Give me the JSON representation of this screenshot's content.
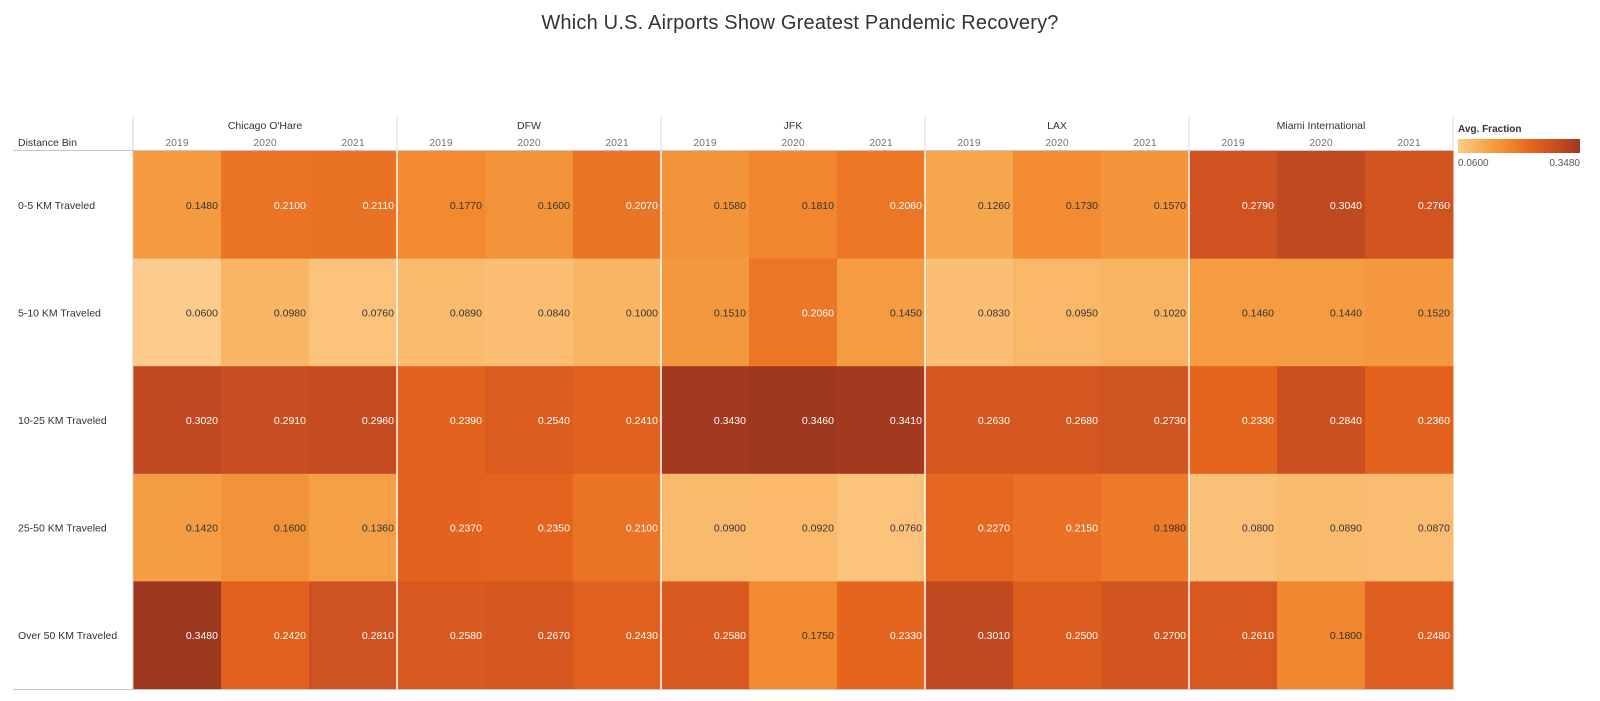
{
  "title": "Which U.S. Airports Show Greatest Pandemic Recovery?",
  "chart_data": {
    "type": "heatmap",
    "title": "Which U.S. Airports Show Greatest Pandemic Recovery?",
    "row_header": "Distance Bin",
    "column_groups": [
      "Chicago O'Hare",
      "DFW",
      "JFK",
      "LAX",
      "Miami International"
    ],
    "years": [
      "2019",
      "2020",
      "2021"
    ],
    "rows": [
      "0-5 KM Traveled",
      "5-10 KM Traveled",
      "10-25 KM Traveled",
      "25-50 KM Traveled",
      "Over 50 KM Traveled"
    ],
    "values": [
      [
        0.148,
        0.21,
        0.211,
        0.177,
        0.16,
        0.207,
        0.158,
        0.181,
        0.206,
        0.126,
        0.173,
        0.157,
        0.279,
        0.304,
        0.276
      ],
      [
        0.06,
        0.098,
        0.076,
        0.089,
        0.084,
        0.1,
        0.151,
        0.206,
        0.145,
        0.083,
        0.095,
        0.102,
        0.146,
        0.144,
        0.152
      ],
      [
        0.302,
        0.291,
        0.296,
        0.239,
        0.254,
        0.241,
        0.343,
        0.346,
        0.341,
        0.263,
        0.268,
        0.273,
        0.233,
        0.284,
        0.236
      ],
      [
        0.142,
        0.16,
        0.136,
        0.237,
        0.235,
        0.21,
        0.09,
        0.092,
        0.076,
        0.227,
        0.215,
        0.198,
        0.08,
        0.089,
        0.087
      ],
      [
        0.348,
        0.242,
        0.281,
        0.258,
        0.267,
        0.243,
        0.258,
        0.175,
        0.233,
        0.301,
        0.25,
        0.27,
        0.261,
        0.18,
        0.248
      ]
    ],
    "labels": [
      [
        "0.1480",
        "0.2100",
        "0.2110",
        "0.1770",
        "0.1600",
        "0.2070",
        "0.1580",
        "0.1810",
        "0.2060",
        "0.1260",
        "0.1730",
        "0.1570",
        "0.2790",
        "0.3040",
        "0.2760"
      ],
      [
        "0.0600",
        "0.0980",
        "0.0760",
        "0.0890",
        "0.0840",
        "0.1000",
        "0.1510",
        "0.2060",
        "0.1450",
        "0.0830",
        "0.0950",
        "0.1020",
        "0.1460",
        "0.1440",
        "0.1520"
      ],
      [
        "0.3020",
        "0.2910",
        "0.2960",
        "0.2390",
        "0.2540",
        "0.2410",
        "0.3430",
        "0.3460",
        "0.3410",
        "0.2630",
        "0.2680",
        "0.2730",
        "0.2330",
        "0.2840",
        "0.2360"
      ],
      [
        "0.1420",
        "0.1600",
        "0.1360",
        "0.2370",
        "0.2350",
        "0.2100",
        "0.0900",
        "0.0920",
        "0.0760",
        "0.2270",
        "0.2150",
        "0.1980",
        "0.0800",
        "0.0890",
        "0.0870"
      ],
      [
        "0.3480",
        "0.2420",
        "0.2810",
        "0.2580",
        "0.2670",
        "0.2430",
        "0.2580",
        "0.1750",
        "0.2330",
        "0.3010",
        "0.2500",
        "0.2700",
        "0.2610",
        "0.1800",
        "0.2480"
      ]
    ],
    "color_scale": {
      "title": "Avg. Fraction",
      "min": 0.06,
      "max": 0.348,
      "min_label": "0.0600",
      "max_label": "0.3480",
      "colors": [
        "#fdcb8b",
        "#f7ab52",
        "#f28a30",
        "#e5641e",
        "#c94e21",
        "#9e3720"
      ]
    },
    "legend_position": "right"
  }
}
